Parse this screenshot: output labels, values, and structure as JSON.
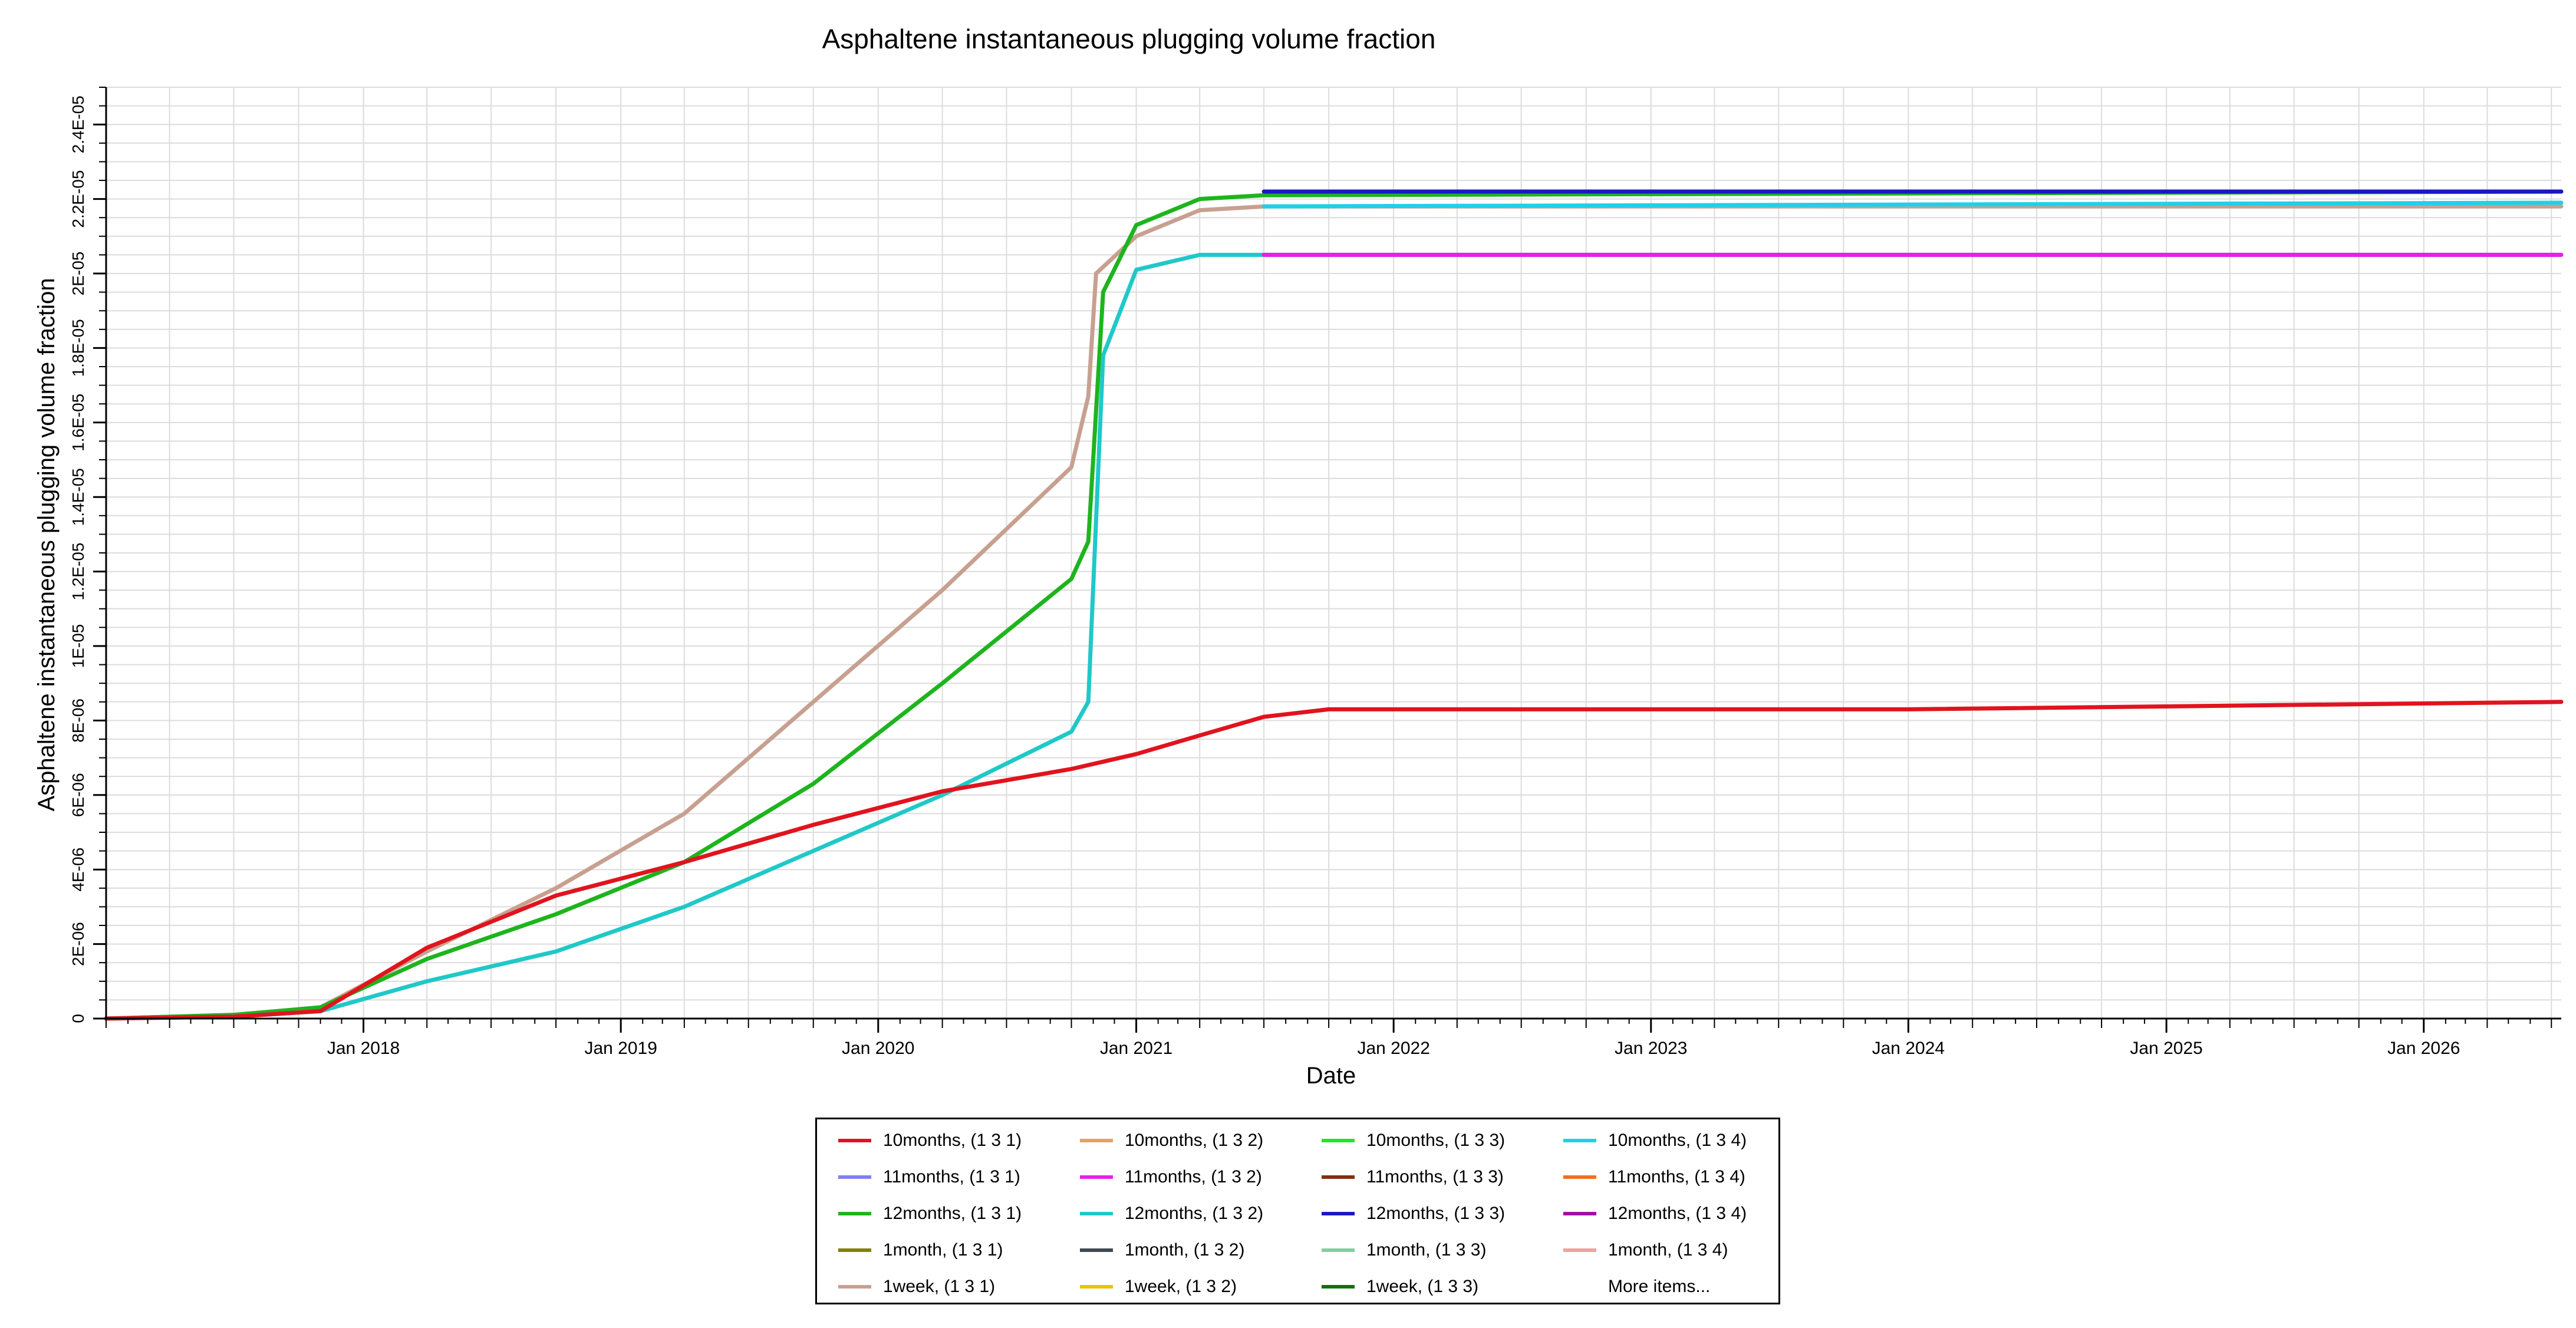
{
  "chart_data": {
    "type": "line",
    "title": "Asphaltene instantaneous plugging volume fraction",
    "xlabel": "Date",
    "ylabel": "Asphaltene instantaneous plugging volume fraction",
    "x_scale": "date",
    "xlim": [
      "2017-01-01",
      "2026-07-15"
    ],
    "ylim": [
      0,
      2.5e-05
    ],
    "y_ticks": [
      0,
      2e-06,
      4e-06,
      6e-06,
      8e-06,
      1e-05,
      1.2e-05,
      1.4e-05,
      1.6e-05,
      1.8e-05,
      2e-05,
      2.2e-05,
      2.4e-05
    ],
    "y_tick_labels": [
      "0",
      "2E-06",
      "4E-06",
      "6E-06",
      "8E-06",
      "1E-05",
      "1.2E-05",
      "1.4E-05",
      "1.6E-05",
      "1.8E-05",
      "2E-05",
      "2.2E-05",
      "2.4E-05"
    ],
    "x_ticks": [
      "2018-01-01",
      "2019-01-01",
      "2020-01-01",
      "2021-01-01",
      "2022-01-01",
      "2023-01-01",
      "2024-01-01",
      "2025-01-01",
      "2026-01-01"
    ],
    "x_tick_labels": [
      "Jan 2018",
      "Jan 2019",
      "Jan 2020",
      "Jan 2021",
      "Jan 2022",
      "Jan 2023",
      "Jan 2024",
      "Jan 2025",
      "Jan 2026"
    ],
    "grid": true,
    "legend_position": "bottom-center",
    "series": [
      {
        "name": "1week, (1 3 1)",
        "color": "#c8a090",
        "x": [
          "2017-01-01",
          "2017-07-01",
          "2017-11-01",
          "2018-04-01",
          "2018-10-01",
          "2019-04-01",
          "2019-10-01",
          "2020-04-01",
          "2020-10-01",
          "2020-10-25",
          "2020-11-05",
          "2021-01-01",
          "2021-04-01",
          "2021-07-01",
          "2026-07-15"
        ],
        "y": [
          0,
          1e-07,
          3e-07,
          1.8e-06,
          3.5e-06,
          5.5e-06,
          8.5e-06,
          1.15e-05,
          1.48e-05,
          1.67e-05,
          2e-05,
          2.1e-05,
          2.17e-05,
          2.18e-05,
          2.18e-05
        ]
      },
      {
        "name": "12months, (1 3 1)",
        "color": "#1eb41e",
        "x": [
          "2017-01-01",
          "2017-07-01",
          "2017-11-01",
          "2018-04-01",
          "2018-10-01",
          "2019-04-01",
          "2019-10-01",
          "2020-04-01",
          "2020-10-01",
          "2020-10-25",
          "2020-11-15",
          "2021-01-01",
          "2021-04-01",
          "2021-07-01",
          "2026-07-15"
        ],
        "y": [
          0,
          1e-07,
          3e-07,
          1.6e-06,
          2.8e-06,
          4.2e-06,
          6.3e-06,
          9e-06,
          1.18e-05,
          1.28e-05,
          1.95e-05,
          2.13e-05,
          2.2e-05,
          2.21e-05,
          2.22e-05
        ]
      },
      {
        "name": "12months, (1 3 2)",
        "color": "#20c8c8",
        "x": [
          "2017-01-01",
          "2017-07-01",
          "2017-11-01",
          "2018-04-01",
          "2018-10-01",
          "2019-04-01",
          "2019-10-01",
          "2020-04-01",
          "2020-10-01",
          "2020-10-25",
          "2020-11-15",
          "2021-01-01",
          "2021-04-01",
          "2021-07-01",
          "2026-07-15"
        ],
        "y": [
          0,
          5e-08,
          2e-07,
          1e-06,
          1.8e-06,
          3e-06,
          4.5e-06,
          6e-06,
          7.7e-06,
          8.5e-06,
          1.78e-05,
          2.01e-05,
          2.05e-05,
          2.05e-05,
          2.05e-05
        ]
      },
      {
        "name": "10months, (1 3 1)",
        "color": "#e0141e",
        "x": [
          "2017-01-01",
          "2017-07-01",
          "2017-11-01",
          "2018-04-01",
          "2018-10-01",
          "2019-04-01",
          "2019-10-01",
          "2020-04-01",
          "2020-10-01",
          "2021-01-01",
          "2021-04-01",
          "2021-07-01",
          "2021-10-01",
          "2022-01-01",
          "2024-01-01",
          "2026-07-15"
        ],
        "y": [
          0,
          5e-08,
          2e-07,
          1.9e-06,
          3.3e-06,
          4.2e-06,
          5.2e-06,
          6.1e-06,
          6.7e-06,
          7.1e-06,
          7.6e-06,
          8.1e-06,
          8.3e-06,
          8.3e-06,
          8.3e-06,
          8.5e-06
        ]
      },
      {
        "name": "10months, (1 3 4)",
        "color": "#20d0e8",
        "x": [
          "2021-07-01",
          "2026-07-15"
        ],
        "y": [
          2.18e-05,
          2.19e-05
        ]
      },
      {
        "name": "11months, (1 3 2)",
        "color": "#e820e8",
        "x": [
          "2021-07-01",
          "2026-07-15"
        ],
        "y": [
          2.05e-05,
          2.05e-05
        ]
      },
      {
        "name": "12months, (1 3 3)",
        "color": "#1818c8",
        "x": [
          "2021-07-01",
          "2026-07-15"
        ],
        "y": [
          2.22e-05,
          2.22e-05
        ]
      }
    ]
  },
  "legend": {
    "items": [
      {
        "label": "10months, (1 3 1)",
        "color": "#e0141e"
      },
      {
        "label": "10months, (1 3 2)",
        "color": "#e8a060"
      },
      {
        "label": "10months, (1 3 3)",
        "color": "#20e820"
      },
      {
        "label": "10months, (1 3 4)",
        "color": "#20d0e8"
      },
      {
        "label": "11months, (1 3 1)",
        "color": "#8080f0"
      },
      {
        "label": "11months, (1 3 2)",
        "color": "#e820e8"
      },
      {
        "label": "11months, (1 3 3)",
        "color": "#803010"
      },
      {
        "label": "11months, (1 3 4)",
        "color": "#f07020"
      },
      {
        "label": "12months, (1 3 1)",
        "color": "#1eb41e"
      },
      {
        "label": "12months, (1 3 2)",
        "color": "#20c8c8"
      },
      {
        "label": "12months, (1 3 3)",
        "color": "#1818c8"
      },
      {
        "label": "12months, (1 3 4)",
        "color": "#a010a0"
      },
      {
        "label": "1month, (1 3 1)",
        "color": "#808000"
      },
      {
        "label": "1month, (1 3 2)",
        "color": "#404850"
      },
      {
        "label": "1month, (1 3 3)",
        "color": "#80d0a0"
      },
      {
        "label": "1month, (1 3 4)",
        "color": "#f0a0a0"
      },
      {
        "label": "1week, (1 3 1)",
        "color": "#c8a090"
      },
      {
        "label": "1week, (1 3 2)",
        "color": "#f0c000"
      },
      {
        "label": "1week, (1 3 3)",
        "color": "#107010"
      }
    ],
    "more_items_label": "More items..."
  }
}
